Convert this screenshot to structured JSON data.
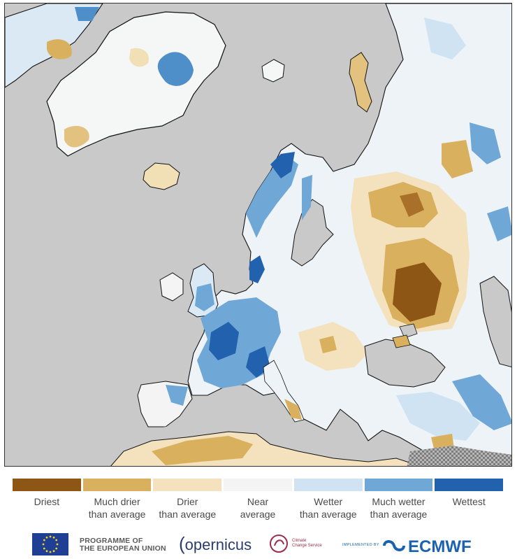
{
  "map": {
    "background": "#c9c9c9",
    "description_classes": [
      "driest",
      "much-drier",
      "drier",
      "near",
      "wetter",
      "much-wetter",
      "wettest"
    ]
  },
  "legend": {
    "items": [
      {
        "line1": "Driest",
        "line2": "",
        "color": "#8d5614"
      },
      {
        "line1": "Much drier",
        "line2": "than average",
        "color": "#d9b15e"
      },
      {
        "line1": "Drier",
        "line2": "than average",
        "color": "#f3e2bd"
      },
      {
        "line1": "Near",
        "line2": "average",
        "color": "#f4f4f4"
      },
      {
        "line1": "Wetter",
        "line2": "than average",
        "color": "#cfe3f2"
      },
      {
        "line1": "Much wetter",
        "line2": "than average",
        "color": "#6fa7d6"
      },
      {
        "line1": "Wettest",
        "line2": "",
        "color": "#2161ae"
      }
    ]
  },
  "footer": {
    "eu_line1": "PROGRAMME OF",
    "eu_line2": "THE EUROPEAN UNION",
    "copernicus": "opernicus",
    "c3s_line1": "Climate",
    "c3s_line2": "Change Service",
    "implemented_by": "IMPLEMENTED BY",
    "ecmwf": "ECMWF"
  }
}
